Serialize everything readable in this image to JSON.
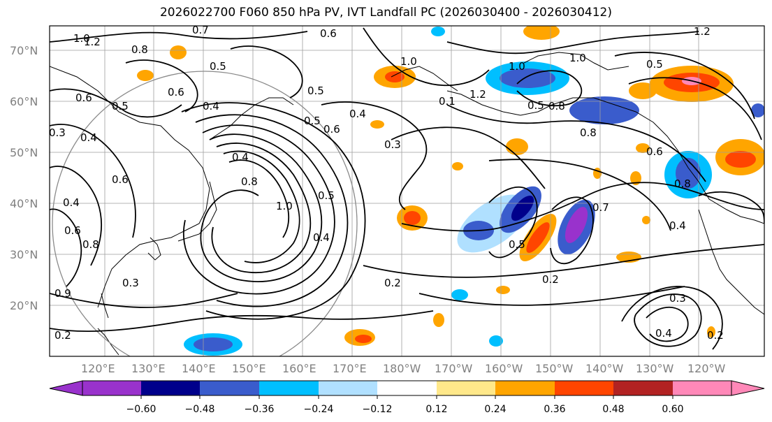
{
  "title": "2026022700 F060 850 hPa PV, IVT Landfall PC (2026030400 - 2026030412)",
  "map": {
    "lat_labels": [
      "70°N",
      "60°N",
      "50°N",
      "40°N",
      "30°N",
      "20°N"
    ],
    "lon_labels": [
      "120°E",
      "130°E",
      "140°E",
      "150°E",
      "160°E",
      "170°E",
      "180°W",
      "170°W",
      "160°W",
      "150°W",
      "140°W",
      "130°W",
      "120°W"
    ],
    "contour_labels": [
      "1.0",
      "0.8",
      "0.6",
      "0.5",
      "0.4",
      "0.4",
      "0.6",
      "0.4",
      "0.3",
      "0.6",
      "0.8",
      "0.9",
      "0.3",
      "0.2",
      "0.5",
      "0.5",
      "1.2",
      "0.6",
      "0.7",
      "0.8",
      "1.0",
      "0.5",
      "0.4",
      "0.6",
      "0.5",
      "0.4",
      "1.0",
      "1.2",
      "0.1",
      "0.3",
      "0.4",
      "1.0",
      "0.5",
      "0.8",
      "1.0",
      "0.6",
      "1.2",
      "0.5",
      "0.6",
      "0.8",
      "0.8",
      "0.7",
      "0.4",
      "0.5",
      "0.2",
      "0.2",
      "0.3",
      "0.4",
      "0.2"
    ]
  },
  "colorbar": {
    "ticks": [
      "−0.60",
      "−0.48",
      "−0.36",
      "−0.24",
      "−0.12",
      "0.12",
      "0.24",
      "0.36",
      "0.48",
      "0.60"
    ],
    "colors": [
      "#9932cc",
      "#00008b",
      "#3a5ccc",
      "#00bfff",
      "#b0e0ff",
      "#ffffff",
      "#ffe88a",
      "#ffa500",
      "#ff4500",
      "#b22222",
      "#ff88b8"
    ]
  }
}
